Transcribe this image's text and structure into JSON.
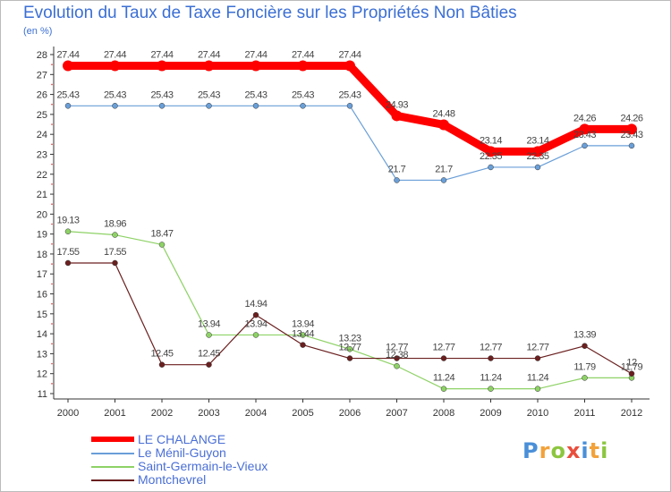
{
  "title": "Evolution du Taux de Taxe Foncière sur les Propriétés Non Bâties",
  "unit_label": "(en %)",
  "logo": {
    "text": "Proxiti",
    "letters": [
      {
        "ch": "P",
        "color": "#4a8fd8"
      },
      {
        "ch": "r",
        "color": "#f2a23a"
      },
      {
        "ch": "o",
        "color": "#8cc63f"
      },
      {
        "ch": "x",
        "color": "#e94e3c"
      },
      {
        "ch": "i",
        "color": "#4a8fd8"
      },
      {
        "ch": "t",
        "color": "#f2a23a"
      },
      {
        "ch": "i",
        "color": "#8cc63f"
      }
    ]
  },
  "chart_data": {
    "type": "line",
    "x": [
      2000,
      2001,
      2002,
      2003,
      2004,
      2005,
      2006,
      2007,
      2008,
      2009,
      2010,
      2011,
      2012
    ],
    "ylim": [
      11,
      28
    ],
    "yticks": [
      11,
      12,
      13,
      14,
      15,
      16,
      17,
      18,
      19,
      20,
      21,
      22,
      23,
      24,
      25,
      26,
      27,
      28
    ],
    "grid": false,
    "legend_position": "bottom-left",
    "series": [
      {
        "name": "LE CHALANGE",
        "color": "#ff0000",
        "values": [
          27.44,
          27.44,
          27.44,
          27.44,
          27.44,
          27.44,
          27.44,
          24.93,
          24.48,
          23.14,
          23.14,
          24.26,
          24.26
        ]
      },
      {
        "name": "Le Ménil-Guyon",
        "color": "#6a9fd8",
        "values": [
          25.43,
          25.43,
          25.43,
          25.43,
          25.43,
          25.43,
          25.43,
          21.7,
          21.7,
          22.35,
          22.35,
          23.43,
          23.43
        ]
      },
      {
        "name": "Saint-Germain-le-Vieux",
        "color": "#8ed266",
        "values": [
          19.13,
          18.96,
          18.47,
          13.94,
          13.94,
          13.94,
          13.23,
          12.38,
          11.24,
          11.24,
          11.24,
          11.79,
          11.79
        ]
      },
      {
        "name": "Montchevrel",
        "color": "#6b1f1f",
        "values": [
          17.55,
          17.55,
          12.45,
          12.45,
          14.94,
          13.44,
          12.77,
          12.77,
          12.77,
          12.77,
          12.77,
          13.39,
          12
        ]
      }
    ]
  }
}
